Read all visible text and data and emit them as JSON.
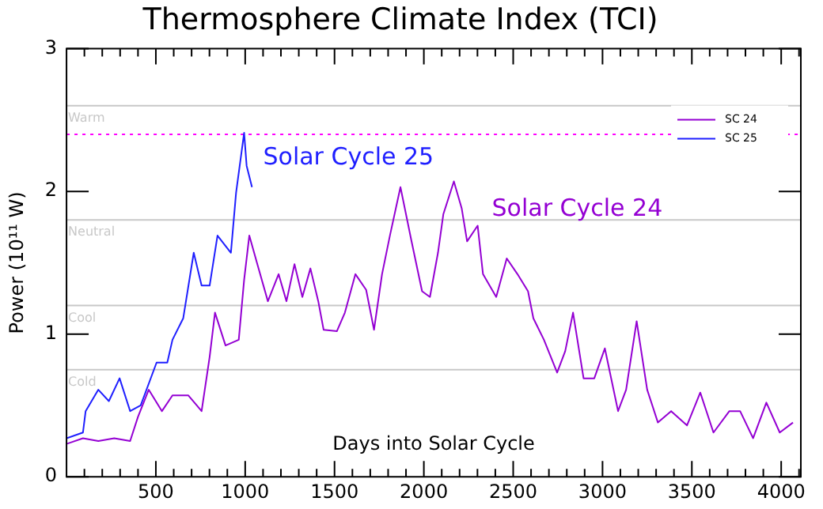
{
  "chart_data": {
    "type": "line",
    "title": "Thermosphere Climate Index (TCI)",
    "xlabel": "Days into Solar Cycle",
    "ylabel": "Power (10¹¹ W)",
    "xlim": [
      0,
      4110
    ],
    "ylim": [
      0,
      3
    ],
    "yticks": [
      0,
      1,
      2,
      3
    ],
    "xticks": [
      {
        "value": 100,
        "label": null
      },
      {
        "value": 200,
        "label": null
      },
      {
        "value": 300,
        "label": null
      },
      {
        "value": 400,
        "label": null
      },
      500,
      {
        "value": 600,
        "label": null
      },
      {
        "value": 700,
        "label": null
      },
      {
        "value": 800,
        "label": null
      },
      {
        "value": 900,
        "label": null
      },
      1000,
      {
        "value": 1100,
        "label": null
      },
      {
        "value": 1200,
        "label": null
      },
      {
        "value": 1300,
        "label": null
      },
      {
        "value": 1400,
        "label": null
      },
      1500,
      {
        "value": 1600,
        "label": null
      },
      {
        "value": 1700,
        "label": null
      },
      {
        "value": 1800,
        "label": null
      },
      {
        "value": 1900,
        "label": null
      },
      2000,
      {
        "value": 2100,
        "label": null
      },
      {
        "value": 2200,
        "label": null
      },
      {
        "value": 2300,
        "label": null
      },
      {
        "value": 2400,
        "label": null
      },
      2500,
      {
        "value": 2600,
        "label": null
      },
      {
        "value": 2700,
        "label": null
      },
      {
        "value": 2800,
        "label": null
      },
      {
        "value": 2900,
        "label": null
      },
      3000,
      {
        "value": 3100,
        "label": null
      },
      {
        "value": 3200,
        "label": null
      },
      {
        "value": 3300,
        "label": null
      },
      {
        "value": 3400,
        "label": null
      },
      3500,
      {
        "value": 3600,
        "label": null
      },
      {
        "value": 3700,
        "label": null
      },
      {
        "value": 3800,
        "label": null
      },
      {
        "value": 3900,
        "label": null
      },
      4000,
      {
        "value": 4100,
        "label": null
      }
    ],
    "grid": false,
    "legend": "top right",
    "marker": "none",
    "line_style": "solid",
    "series": [
      {
        "name": "SC 24",
        "color": "#9400d3",
        "x": [
          0,
          92,
          178,
          267,
          356,
          400,
          460,
          534,
          593,
          682,
          756,
          801,
          831,
          890,
          964,
          994,
          1023,
          1068,
          1127,
          1187,
          1231,
          1276,
          1320,
          1365,
          1409,
          1439,
          1513,
          1558,
          1617,
          1677,
          1721,
          1766,
          1810,
          1869,
          1931,
          1990,
          2034,
          2079,
          2109,
          2168,
          2212,
          2242,
          2301,
          2331,
          2405,
          2464,
          2524,
          2583,
          2613,
          2672,
          2746,
          2791,
          2835,
          2894,
          2954,
          3013,
          3087,
          3132,
          3191,
          3250,
          3310,
          3384,
          3473,
          3547,
          3621,
          3710,
          3770,
          3843,
          3917,
          3992,
          4066
        ],
        "values": [
          0.23,
          0.27,
          0.25,
          0.27,
          0.25,
          0.42,
          0.61,
          0.46,
          0.57,
          0.57,
          0.46,
          0.84,
          1.15,
          0.92,
          0.96,
          1.38,
          1.69,
          1.49,
          1.23,
          1.42,
          1.23,
          1.49,
          1.26,
          1.46,
          1.23,
          1.03,
          1.02,
          1.15,
          1.42,
          1.31,
          1.03,
          1.42,
          1.69,
          2.03,
          1.65,
          1.3,
          1.26,
          1.57,
          1.84,
          2.07,
          1.88,
          1.65,
          1.76,
          1.42,
          1.26,
          1.53,
          1.42,
          1.3,
          1.11,
          0.96,
          0.73,
          0.88,
          1.15,
          0.69,
          0.69,
          0.9,
          0.46,
          0.61,
          1.09,
          0.61,
          0.38,
          0.46,
          0.36,
          0.59,
          0.31,
          0.46,
          0.46,
          0.27,
          0.52,
          0.31,
          0.38
        ]
      },
      {
        "name": "SC 25",
        "color": "#1f1fff",
        "x": [
          0,
          92,
          107,
          178,
          237,
          297,
          356,
          415,
          504,
          564,
          593,
          653,
          712,
          756,
          801,
          845,
          920,
          949,
          994,
          1008,
          1038
        ],
        "values": [
          0.27,
          0.31,
          0.46,
          0.61,
          0.53,
          0.69,
          0.46,
          0.5,
          0.8,
          0.8,
          0.96,
          1.11,
          1.57,
          1.34,
          1.34,
          1.69,
          1.57,
          1.99,
          2.41,
          2.18,
          2.03
        ]
      }
    ],
    "ref_lines": [
      {
        "axis": "y",
        "value": 2.6,
        "label": "Warm",
        "color": "#c8c8c8"
      },
      {
        "axis": "y",
        "value": 1.8,
        "label": "Neutral",
        "color": "#c8c8c8"
      },
      {
        "axis": "y",
        "value": 1.2,
        "label": "Cool",
        "color": "#c8c8c8"
      },
      {
        "axis": "y",
        "value": 0.75,
        "label": "Cold",
        "color": "#c8c8c8"
      },
      {
        "axis": "y",
        "value": 2.4,
        "color": "#ff00ff",
        "line_style": "dotted"
      }
    ],
    "annotations": [
      "Solar Cycle 25",
      "Solar Cycle 24"
    ]
  }
}
